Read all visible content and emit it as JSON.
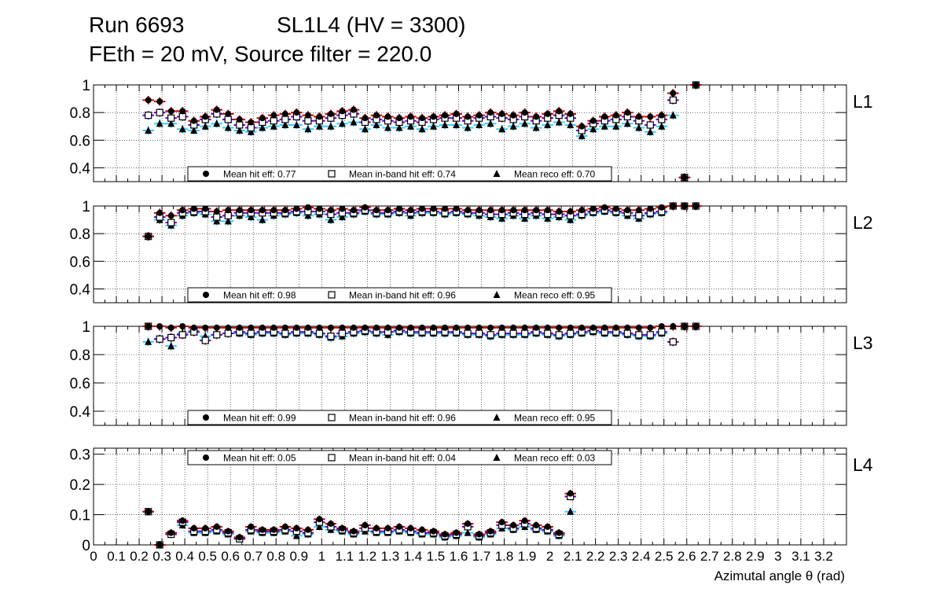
{
  "header": {
    "run": "Run 6693",
    "chamber": "SL1L4 (HV = 3300)",
    "settings": "FEth = 20 mV, Source filter = 220.0"
  },
  "colors": {
    "hit": "#cc0000",
    "inband": "#6600cc",
    "reco": "#33ccff",
    "marker": "#000000"
  },
  "chart_data": {
    "type": "scatter",
    "xlabel": "Azimutal angle θ (rad)",
    "xlim": [
      0,
      3.3
    ],
    "x_tick_labels": [
      "0",
      "0.1",
      "0.2",
      "0.3",
      "0.4",
      "0.5",
      "0.6",
      "0.7",
      "0.8",
      "0.9",
      "1",
      "1.1",
      "1.2",
      "1.3",
      "1.4",
      "1.5",
      "1.6",
      "1.7",
      "1.8",
      "1.9",
      "2",
      "2.1",
      "2.2",
      "2.3",
      "2.4",
      "2.5",
      "2.6",
      "2.7",
      "2.8",
      "2.9",
      "3",
      "3.1",
      "3.2"
    ],
    "x": [
      0.24,
      0.29,
      0.34,
      0.39,
      0.44,
      0.49,
      0.54,
      0.59,
      0.64,
      0.69,
      0.74,
      0.79,
      0.84,
      0.89,
      0.94,
      0.99,
      1.04,
      1.09,
      1.14,
      1.19,
      1.24,
      1.29,
      1.34,
      1.39,
      1.44,
      1.49,
      1.54,
      1.59,
      1.64,
      1.69,
      1.74,
      1.79,
      1.84,
      1.89,
      1.94,
      1.99,
      2.04,
      2.09,
      2.14,
      2.19,
      2.24,
      2.29,
      2.34,
      2.39,
      2.44,
      2.49,
      2.54,
      2.59,
      2.64,
      2.69,
      2.74
    ],
    "panels": [
      {
        "label": "L1",
        "ylim": [
          0.3,
          1.0
        ],
        "y_ticks": [
          "0.4",
          "0.6",
          "0.8",
          "1"
        ],
        "legend": [
          "Mean hit  eff: 0.77",
          "Mean in-band hit eff: 0.74",
          "Mean reco eff: 0.70"
        ],
        "series": [
          {
            "name": "hit",
            "values": [
              0.89,
              0.88,
              0.81,
              0.81,
              0.74,
              0.77,
              0.82,
              0.79,
              0.75,
              0.73,
              0.76,
              0.78,
              0.79,
              0.8,
              0.78,
              0.77,
              0.79,
              0.81,
              0.82,
              0.76,
              0.78,
              0.77,
              0.76,
              0.77,
              0.76,
              0.77,
              0.78,
              0.79,
              0.77,
              0.78,
              0.8,
              0.79,
              0.78,
              0.8,
              0.77,
              0.79,
              0.81,
              0.79,
              0.7,
              0.74,
              0.77,
              0.78,
              0.8,
              0.77,
              0.77,
              0.78,
              0.94,
              0.33,
              1.0,
              null,
              null
            ]
          },
          {
            "name": "inband",
            "values": [
              0.78,
              0.8,
              0.76,
              0.77,
              0.71,
              0.75,
              0.79,
              0.75,
              0.71,
              0.69,
              0.73,
              0.74,
              0.75,
              0.77,
              0.74,
              0.74,
              0.76,
              0.78,
              0.79,
              0.73,
              0.75,
              0.74,
              0.73,
              0.74,
              0.73,
              0.75,
              0.76,
              0.76,
              0.74,
              0.76,
              0.77,
              0.76,
              0.75,
              0.77,
              0.74,
              0.76,
              0.78,
              0.76,
              0.67,
              0.72,
              0.74,
              0.75,
              0.77,
              0.74,
              0.71,
              0.75,
              0.89,
              0.33,
              1.0,
              null,
              null
            ]
          },
          {
            "name": "reco",
            "values": [
              0.67,
              0.72,
              0.72,
              0.68,
              0.67,
              0.7,
              0.72,
              0.69,
              0.67,
              0.66,
              0.69,
              0.7,
              0.71,
              0.71,
              0.68,
              0.7,
              0.7,
              0.72,
              0.73,
              0.68,
              0.71,
              0.69,
              0.69,
              0.7,
              0.68,
              0.7,
              0.71,
              0.71,
              0.69,
              0.71,
              0.72,
              0.68,
              0.7,
              0.72,
              0.69,
              0.71,
              0.73,
              0.71,
              0.63,
              0.68,
              0.7,
              0.7,
              0.72,
              0.69,
              0.66,
              0.7,
              0.78,
              0.33,
              1.0,
              null,
              null
            ]
          }
        ]
      },
      {
        "label": "L2",
        "ylim": [
          0.3,
          1.0
        ],
        "y_ticks": [
          "0.4",
          "0.6",
          "0.8",
          "1"
        ],
        "legend": [
          "Mean hit  eff: 0.98",
          "Mean in-band hit eff: 0.96",
          "Mean reco eff: 0.95"
        ],
        "series": [
          {
            "name": "hit",
            "values": [
              0.78,
              0.95,
              0.93,
              0.97,
              0.98,
              0.98,
              0.96,
              0.97,
              0.97,
              0.97,
              0.97,
              0.97,
              0.97,
              0.98,
              0.99,
              0.98,
              0.97,
              0.98,
              0.97,
              0.99,
              0.97,
              0.97,
              0.98,
              0.97,
              0.98,
              0.98,
              0.98,
              0.98,
              0.97,
              0.97,
              0.97,
              0.97,
              0.97,
              0.97,
              0.97,
              0.97,
              0.96,
              0.96,
              0.97,
              0.98,
              0.99,
              0.98,
              0.97,
              0.97,
              0.98,
              0.99,
              1.0,
              1.0,
              1.0,
              null,
              null
            ]
          },
          {
            "name": "inband",
            "values": [
              0.78,
              0.92,
              0.88,
              0.95,
              0.96,
              0.96,
              0.92,
              0.93,
              0.95,
              0.95,
              0.95,
              0.95,
              0.95,
              0.96,
              0.96,
              0.96,
              0.94,
              0.95,
              0.95,
              0.97,
              0.95,
              0.95,
              0.96,
              0.95,
              0.96,
              0.96,
              0.95,
              0.96,
              0.95,
              0.95,
              0.94,
              0.94,
              0.95,
              0.94,
              0.95,
              0.94,
              0.94,
              0.93,
              0.94,
              0.96,
              0.97,
              0.96,
              0.95,
              0.93,
              0.95,
              0.96,
              1.0,
              1.0,
              1.0,
              null,
              null
            ]
          },
          {
            "name": "reco",
            "values": [
              0.78,
              0.9,
              0.86,
              0.93,
              0.95,
              0.94,
              0.89,
              0.89,
              0.93,
              0.92,
              0.9,
              0.93,
              0.94,
              0.95,
              0.93,
              0.94,
              0.9,
              0.92,
              0.94,
              0.96,
              0.94,
              0.94,
              0.95,
              0.93,
              0.95,
              0.95,
              0.94,
              0.95,
              0.94,
              0.93,
              0.92,
              0.91,
              0.93,
              0.91,
              0.93,
              0.91,
              0.92,
              0.9,
              0.93,
              0.95,
              0.96,
              0.95,
              0.93,
              0.91,
              0.94,
              0.95,
              1.0,
              1.0,
              1.0,
              null,
              null
            ]
          }
        ]
      },
      {
        "label": "L3",
        "ylim": [
          0.3,
          1.0
        ],
        "y_ticks": [
          "0.4",
          "0.6",
          "0.8",
          "1"
        ],
        "legend": [
          "Mean hit  eff: 0.99",
          "Mean in-band hit eff: 0.96",
          "Mean reco eff: 0.95"
        ],
        "series": [
          {
            "name": "hit",
            "values": [
              1.0,
              1.0,
              0.99,
              1.0,
              0.99,
              0.99,
              0.99,
              0.99,
              0.99,
              0.99,
              0.99,
              0.99,
              0.99,
              0.99,
              0.99,
              0.99,
              0.99,
              0.99,
              0.99,
              0.99,
              0.99,
              0.99,
              0.99,
              0.99,
              0.99,
              0.99,
              0.99,
              0.99,
              0.99,
              0.99,
              0.99,
              0.99,
              0.99,
              0.99,
              0.99,
              0.99,
              0.99,
              0.99,
              0.99,
              0.99,
              0.99,
              0.99,
              0.99,
              0.99,
              0.99,
              1.0,
              1.0,
              1.0,
              1.0,
              null,
              null
            ]
          },
          {
            "name": "inband",
            "values": [
              1.0,
              0.91,
              0.92,
              0.94,
              0.96,
              0.9,
              0.94,
              0.95,
              0.96,
              0.95,
              0.96,
              0.96,
              0.95,
              0.96,
              0.96,
              0.95,
              0.93,
              0.95,
              0.96,
              0.97,
              0.96,
              0.96,
              0.97,
              0.96,
              0.96,
              0.96,
              0.96,
              0.96,
              0.95,
              0.95,
              0.94,
              0.95,
              0.95,
              0.95,
              0.96,
              0.95,
              0.94,
              0.95,
              0.96,
              0.97,
              0.96,
              0.96,
              0.95,
              0.94,
              0.94,
              0.96,
              0.89,
              1.0,
              1.0,
              null,
              null
            ]
          },
          {
            "name": "reco",
            "values": [
              0.89,
              0.91,
              0.86,
              0.95,
              0.97,
              0.93,
              0.94,
              0.95,
              0.95,
              0.94,
              0.95,
              0.95,
              0.94,
              0.95,
              0.95,
              0.94,
              0.92,
              0.93,
              0.95,
              0.96,
              0.95,
              0.94,
              0.96,
              0.95,
              0.95,
              0.95,
              0.95,
              0.95,
              0.94,
              0.94,
              0.93,
              0.94,
              0.94,
              0.94,
              0.95,
              0.94,
              0.93,
              0.94,
              0.95,
              0.96,
              0.95,
              0.95,
              0.94,
              0.93,
              0.93,
              0.95,
              1.0,
              1.0,
              1.0,
              null,
              null
            ]
          }
        ]
      },
      {
        "label": "L4",
        "ylim": [
          0,
          0.32
        ],
        "y_ticks": [
          "0",
          "0.1",
          "0.2",
          "0.3"
        ],
        "legend": [
          "Mean hit  eff: 0.05",
          "Mean in-band hit eff: 0.04",
          "Mean reco eff: 0.03"
        ],
        "series": [
          {
            "name": "hit",
            "values": [
              0.11,
              0.0,
              0.04,
              0.08,
              0.055,
              0.055,
              0.06,
              0.045,
              0.025,
              0.06,
              0.05,
              0.05,
              0.06,
              0.055,
              0.05,
              0.085,
              0.07,
              0.055,
              0.045,
              0.065,
              0.055,
              0.055,
              0.06,
              0.055,
              0.05,
              0.045,
              0.035,
              0.04,
              0.07,
              0.035,
              0.045,
              0.075,
              0.065,
              0.08,
              0.065,
              0.06,
              0.04,
              0.17,
              null,
              null,
              null,
              null,
              null,
              null,
              null,
              null,
              null,
              null,
              null,
              null,
              null
            ]
          },
          {
            "name": "inband",
            "values": [
              0.11,
              0.0,
              0.035,
              0.075,
              0.045,
              0.045,
              0.05,
              0.04,
              0.02,
              0.05,
              0.045,
              0.045,
              0.05,
              0.045,
              0.04,
              0.075,
              0.06,
              0.05,
              0.04,
              0.055,
              0.045,
              0.045,
              0.05,
              0.045,
              0.04,
              0.04,
              0.03,
              0.035,
              0.06,
              0.03,
              0.04,
              0.065,
              0.055,
              0.07,
              0.055,
              0.05,
              0.035,
              0.16,
              null,
              null,
              null,
              null,
              null,
              null,
              null,
              null,
              null,
              null,
              null,
              null,
              null
            ]
          },
          {
            "name": "reco",
            "values": [
              0.11,
              0.0,
              0.035,
              0.065,
              0.04,
              0.04,
              0.045,
              0.035,
              0.02,
              0.045,
              0.04,
              0.04,
              0.045,
              0.03,
              0.035,
              0.06,
              0.05,
              0.045,
              0.035,
              0.045,
              0.04,
              0.04,
              0.045,
              0.04,
              0.035,
              0.035,
              0.025,
              0.03,
              0.04,
              0.025,
              0.035,
              0.055,
              0.05,
              0.06,
              0.05,
              0.045,
              0.03,
              0.11,
              null,
              null,
              null,
              null,
              null,
              null,
              null,
              null,
              null,
              null,
              null,
              null,
              null
            ]
          }
        ]
      }
    ]
  }
}
